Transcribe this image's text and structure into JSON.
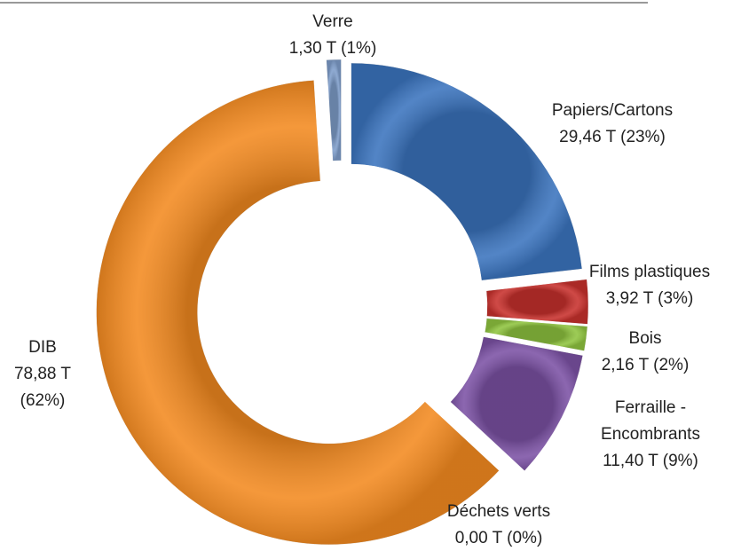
{
  "chart_data": {
    "type": "donut",
    "categories": [
      "Papiers/Cartons",
      "Films plastiques",
      "Bois",
      "Ferraille - Encombrants",
      "Déchets verts",
      "DIB",
      "Verre"
    ],
    "values": [
      29.46,
      3.92,
      2.16,
      11.4,
      0.0,
      78.88,
      1.3
    ],
    "value_labels": [
      "29,46 T (23%)",
      "3,92 T (3%)",
      "2,16 T (2%)",
      "11,40 T (9%)",
      "0,00 T (0%)",
      "78,88 T (62%)",
      "1,30 T (1%)"
    ],
    "colors": [
      "#3b74be",
      "#c8312d",
      "#8fc43f",
      "#7c52a5",
      "#5f9e3a",
      "#f38a20",
      "#7f9ecb"
    ]
  }
}
